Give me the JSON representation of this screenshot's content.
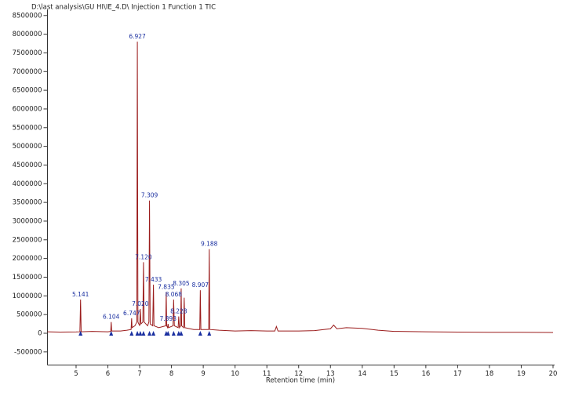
{
  "chart_data": {
    "type": "line",
    "title": "D:\\last analysis\\GU HI\\IE_4.D\\ Injection 1 Function 1 TIC",
    "x_label": "Retention time (min)",
    "color": "#9b1c1c",
    "x": [
      4.1,
      4.5,
      5.0,
      5.12,
      5.141,
      5.16,
      5.5,
      6.0,
      6.09,
      6.104,
      6.12,
      6.4,
      6.6,
      6.73,
      6.747,
      6.76,
      6.85,
      6.91,
      6.927,
      6.945,
      7.0,
      7.02,
      7.04,
      7.1,
      7.12,
      7.14,
      7.25,
      7.29,
      7.309,
      7.33,
      7.41,
      7.433,
      7.45,
      7.6,
      7.82,
      7.835,
      7.85,
      7.88,
      7.893,
      7.91,
      8.05,
      8.068,
      8.09,
      8.21,
      8.228,
      8.25,
      8.29,
      8.305,
      8.32,
      8.38,
      8.4,
      8.42,
      8.7,
      8.89,
      8.907,
      8.925,
      9.17,
      9.188,
      9.205,
      9.5,
      10.0,
      10.5,
      11.0,
      11.25,
      11.3,
      11.35,
      12.0,
      12.5,
      13.0,
      13.1,
      13.2,
      13.5,
      14.0,
      14.5,
      15.0,
      16.0,
      17.0,
      18.0,
      19.0,
      20.0
    ],
    "values": [
      40000,
      30000,
      35000,
      40000,
      900000,
      40000,
      50000,
      40000,
      50000,
      300000,
      60000,
      60000,
      80000,
      100000,
      400000,
      150000,
      200000,
      300000,
      7800000,
      300000,
      200000,
      650000,
      250000,
      300000,
      1900000,
      300000,
      200000,
      300000,
      3550000,
      250000,
      200000,
      1300000,
      200000,
      150000,
      200000,
      1100000,
      200000,
      150000,
      250000,
      150000,
      200000,
      900000,
      200000,
      150000,
      450000,
      150000,
      200000,
      1200000,
      200000,
      150000,
      950000,
      150000,
      100000,
      100000,
      1150000,
      100000,
      100000,
      2250000,
      100000,
      80000,
      60000,
      70000,
      60000,
      60000,
      180000,
      60000,
      60000,
      70000,
      120000,
      220000,
      120000,
      150000,
      130000,
      80000,
      50000,
      40000,
      30000,
      25000,
      25000,
      20000
    ],
    "peaks": {
      "color": "#1a2fa0",
      "x": [
        5.141,
        6.104,
        6.747,
        6.927,
        7.02,
        7.12,
        7.309,
        7.433,
        7.835,
        7.893,
        8.068,
        8.228,
        8.305,
        8.907,
        9.188
      ],
      "y": [
        900000,
        300000,
        400000,
        7800000,
        650000,
        1900000,
        3550000,
        1300000,
        1100000,
        250000,
        900000,
        450000,
        1200000,
        1150000,
        2250000
      ],
      "labels": [
        "5.141",
        "6.104",
        "6.747",
        "6.927",
        "7.020",
        "7.120",
        "7.309",
        "7.433",
        "7.835",
        "7.893",
        "8.068",
        "8.228",
        "8.305",
        "8.907",
        "9.188"
      ]
    },
    "xlim": [
      4.1,
      20
    ],
    "xticks": [
      5,
      6,
      7,
      8,
      9,
      10,
      11,
      12,
      13,
      14,
      15,
      16,
      17,
      18,
      19,
      20
    ],
    "ylim": [
      -850000,
      8600000
    ],
    "yticks": [
      -500000,
      0,
      500000,
      1000000,
      1500000,
      2000000,
      2500000,
      3000000,
      3500000,
      4000000,
      4500000,
      5000000,
      5500000,
      6000000,
      6500000,
      7000000,
      7500000,
      8000000,
      8500000
    ]
  }
}
